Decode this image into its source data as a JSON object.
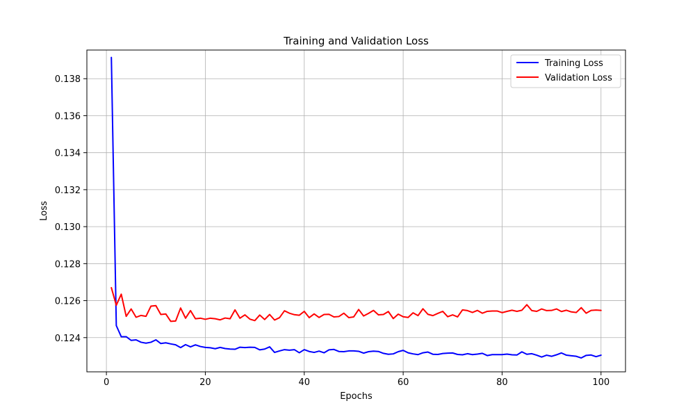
{
  "chart_data": {
    "type": "line",
    "title": "Training and Validation Loss",
    "xlabel": "Epochs",
    "ylabel": "Loss",
    "xlim": [
      -3.95,
      104.95
    ],
    "ylim": [
      0.12215,
      0.13955
    ],
    "xticks": [
      0,
      20,
      40,
      60,
      80,
      100
    ],
    "yticks": [
      0.124,
      0.126,
      0.128,
      0.13,
      0.132,
      0.134,
      0.136,
      0.138
    ],
    "ytick_labels": [
      "0.124",
      "0.126",
      "0.128",
      "0.130",
      "0.132",
      "0.134",
      "0.136",
      "0.138"
    ],
    "grid": true,
    "legend_position": "top-right",
    "x": [
      1,
      2,
      3,
      4,
      5,
      6,
      7,
      8,
      9,
      10,
      11,
      12,
      13,
      14,
      15,
      16,
      17,
      18,
      19,
      20,
      21,
      22,
      23,
      24,
      25,
      26,
      27,
      28,
      29,
      30,
      31,
      32,
      33,
      34,
      35,
      36,
      37,
      38,
      39,
      40,
      41,
      42,
      43,
      44,
      45,
      46,
      47,
      48,
      49,
      50,
      51,
      52,
      53,
      54,
      55,
      56,
      57,
      58,
      59,
      60,
      61,
      62,
      63,
      64,
      65,
      66,
      67,
      68,
      69,
      70,
      71,
      72,
      73,
      74,
      75,
      76,
      77,
      78,
      79,
      80,
      81,
      82,
      83,
      84,
      85,
      86,
      87,
      88,
      89,
      90,
      91,
      92,
      93,
      94,
      95,
      96,
      97,
      98,
      99,
      100
    ],
    "series": [
      {
        "name": "Training Loss",
        "color": "#0000ff",
        "values": [
          0.13915,
          0.12465,
          0.12405,
          0.12405,
          0.12385,
          0.12388,
          0.12375,
          0.1237,
          0.12375,
          0.12388,
          0.12368,
          0.12372,
          0.12366,
          0.12361,
          0.12346,
          0.12362,
          0.1235,
          0.12361,
          0.12352,
          0.12347,
          0.12345,
          0.1234,
          0.12347,
          0.12341,
          0.12338,
          0.12337,
          0.12348,
          0.12346,
          0.12348,
          0.12347,
          0.12334,
          0.12338,
          0.1235,
          0.1232,
          0.12328,
          0.12335,
          0.12332,
          0.12335,
          0.12318,
          0.12335,
          0.12325,
          0.1232,
          0.12327,
          0.12318,
          0.12334,
          0.12336,
          0.12325,
          0.12324,
          0.12328,
          0.12328,
          0.12326,
          0.12316,
          0.12324,
          0.12327,
          0.12325,
          0.12315,
          0.1231,
          0.12312,
          0.12324,
          0.12331,
          0.12318,
          0.12312,
          0.12308,
          0.12318,
          0.12322,
          0.1231,
          0.12309,
          0.12314,
          0.12316,
          0.12317,
          0.12309,
          0.12307,
          0.12313,
          0.12308,
          0.12311,
          0.12315,
          0.12303,
          0.12308,
          0.12308,
          0.12308,
          0.12311,
          0.12307,
          0.12306,
          0.12323,
          0.1231,
          0.12313,
          0.12305,
          0.12295,
          0.12305,
          0.12299,
          0.12307,
          0.12317,
          0.12305,
          0.12302,
          0.12299,
          0.1229,
          0.12304,
          0.12306,
          0.12297,
          0.12305
        ]
      },
      {
        "name": "Validation Loss",
        "color": "#ff0000",
        "values": [
          0.1267,
          0.12575,
          0.12635,
          0.12515,
          0.12555,
          0.1251,
          0.1252,
          0.12515,
          0.1257,
          0.12573,
          0.12525,
          0.12528,
          0.12488,
          0.1249,
          0.1256,
          0.12505,
          0.12546,
          0.12502,
          0.12505,
          0.12499,
          0.12505,
          0.12502,
          0.12496,
          0.12506,
          0.12502,
          0.1255,
          0.12505,
          0.12523,
          0.125,
          0.12492,
          0.12522,
          0.12498,
          0.12525,
          0.12495,
          0.12508,
          0.12545,
          0.12532,
          0.12524,
          0.12521,
          0.12542,
          0.12508,
          0.12528,
          0.12509,
          0.12525,
          0.12526,
          0.12512,
          0.12514,
          0.12532,
          0.12508,
          0.12512,
          0.12552,
          0.12517,
          0.12531,
          0.12547,
          0.12523,
          0.12525,
          0.12541,
          0.12503,
          0.12527,
          0.12513,
          0.12509,
          0.12534,
          0.12519,
          0.12556,
          0.12526,
          0.12519,
          0.12531,
          0.12542,
          0.12513,
          0.12523,
          0.12512,
          0.1255,
          0.12546,
          0.12536,
          0.12547,
          0.12532,
          0.12542,
          0.12544,
          0.12544,
          0.12535,
          0.12542,
          0.12548,
          0.12542,
          0.12548,
          0.12578,
          0.12546,
          0.12542,
          0.12555,
          0.12546,
          0.12547,
          0.12555,
          0.12541,
          0.12548,
          0.12539,
          0.12536,
          0.12562,
          0.12532,
          0.12547,
          0.12549,
          0.12547
        ]
      }
    ]
  }
}
